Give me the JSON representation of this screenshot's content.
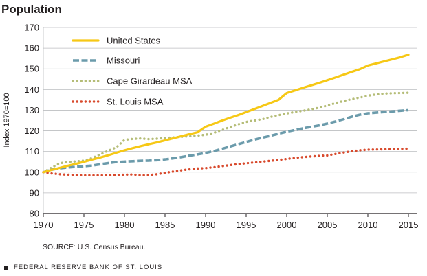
{
  "title": "Population",
  "source": "SOURCE: U.S. Census Bureau.",
  "footer": "FEDERAL RESERVE BANK OF ST. LOUIS",
  "chart_data": {
    "type": "line",
    "title": "Population",
    "xlabel": "",
    "ylabel": "Index 1970=100",
    "xlim": [
      1970,
      2016
    ],
    "ylim": [
      80,
      170
    ],
    "xticks": [
      1970,
      1975,
      1980,
      1985,
      1990,
      1995,
      2000,
      2005,
      2010,
      2015
    ],
    "yticks": [
      80,
      90,
      100,
      110,
      120,
      130,
      140,
      150,
      160,
      170
    ],
    "grid": true,
    "legend_position": "top-left",
    "x": [
      1970,
      1971,
      1972,
      1973,
      1974,
      1975,
      1976,
      1977,
      1978,
      1979,
      1980,
      1981,
      1982,
      1983,
      1984,
      1985,
      1986,
      1987,
      1988,
      1989,
      1990,
      1991,
      1992,
      1993,
      1994,
      1995,
      1996,
      1997,
      1998,
      1999,
      2000,
      2001,
      2002,
      2003,
      2004,
      2005,
      2006,
      2007,
      2008,
      2009,
      2010,
      2011,
      2012,
      2013,
      2014,
      2015
    ],
    "series": [
      {
        "name": "United States",
        "color": "#f6c816",
        "style": "solid",
        "values": [
          100,
          101.1,
          102.1,
          103.1,
          104.0,
          105.0,
          106.1,
          107.1,
          108.2,
          109.4,
          110.6,
          111.6,
          112.6,
          113.5,
          114.4,
          115.4,
          116.4,
          117.4,
          118.4,
          119.3,
          122.0,
          123.4,
          124.9,
          126.3,
          127.6,
          129.1,
          130.5,
          132.0,
          133.5,
          135.0,
          138.3,
          139.5,
          140.8,
          142.0,
          143.2,
          144.5,
          145.8,
          147.2,
          148.5,
          149.8,
          151.6,
          152.6,
          153.6,
          154.6,
          155.6,
          156.8
        ]
      },
      {
        "name": "Missouri",
        "color": "#6b9bab",
        "style": "dashed",
        "values": [
          100,
          101.2,
          101.9,
          102.3,
          102.6,
          102.9,
          103.2,
          103.8,
          104.4,
          104.9,
          105.1,
          105.3,
          105.5,
          105.6,
          105.8,
          106.2,
          106.7,
          107.3,
          108.0,
          108.6,
          109.3,
          110.2,
          111.3,
          112.4,
          113.5,
          114.6,
          115.7,
          116.7,
          117.6,
          118.6,
          119.6,
          120.4,
          121.2,
          121.9,
          122.6,
          123.5,
          124.5,
          125.6,
          126.8,
          127.8,
          128.5,
          128.8,
          129.1,
          129.4,
          129.7,
          130.0
        ]
      },
      {
        "name": "Cape Girardeau MSA",
        "color": "#b5bd78",
        "style": "dotted",
        "values": [
          100,
          102.2,
          104.3,
          104.9,
          105.2,
          105.6,
          106.8,
          108.6,
          110.4,
          112.0,
          115.6,
          116.1,
          116.3,
          116.0,
          116.2,
          116.5,
          116.8,
          117.1,
          117.4,
          117.7,
          118.1,
          119.0,
          120.4,
          121.8,
          123.1,
          124.3,
          125.0,
          125.6,
          126.7,
          127.6,
          128.4,
          129.1,
          129.7,
          130.4,
          131.2,
          132.2,
          133.4,
          134.4,
          135.3,
          136.1,
          137.0,
          137.6,
          138.0,
          138.2,
          138.3,
          138.4
        ]
      },
      {
        "name": "St. Louis MSA",
        "color": "#d84a2d",
        "style": "dotted",
        "values": [
          100,
          99.4,
          99.0,
          98.8,
          98.6,
          98.5,
          98.5,
          98.5,
          98.5,
          98.6,
          98.8,
          98.9,
          98.5,
          98.6,
          99.0,
          99.7,
          100.3,
          100.9,
          101.4,
          101.8,
          102.0,
          102.4,
          102.9,
          103.4,
          103.9,
          104.3,
          104.7,
          105.1,
          105.5,
          105.9,
          106.4,
          106.9,
          107.3,
          107.6,
          107.9,
          108.1,
          108.8,
          109.5,
          110.1,
          110.6,
          110.9,
          111.0,
          111.1,
          111.2,
          111.3,
          111.4
        ]
      }
    ]
  }
}
